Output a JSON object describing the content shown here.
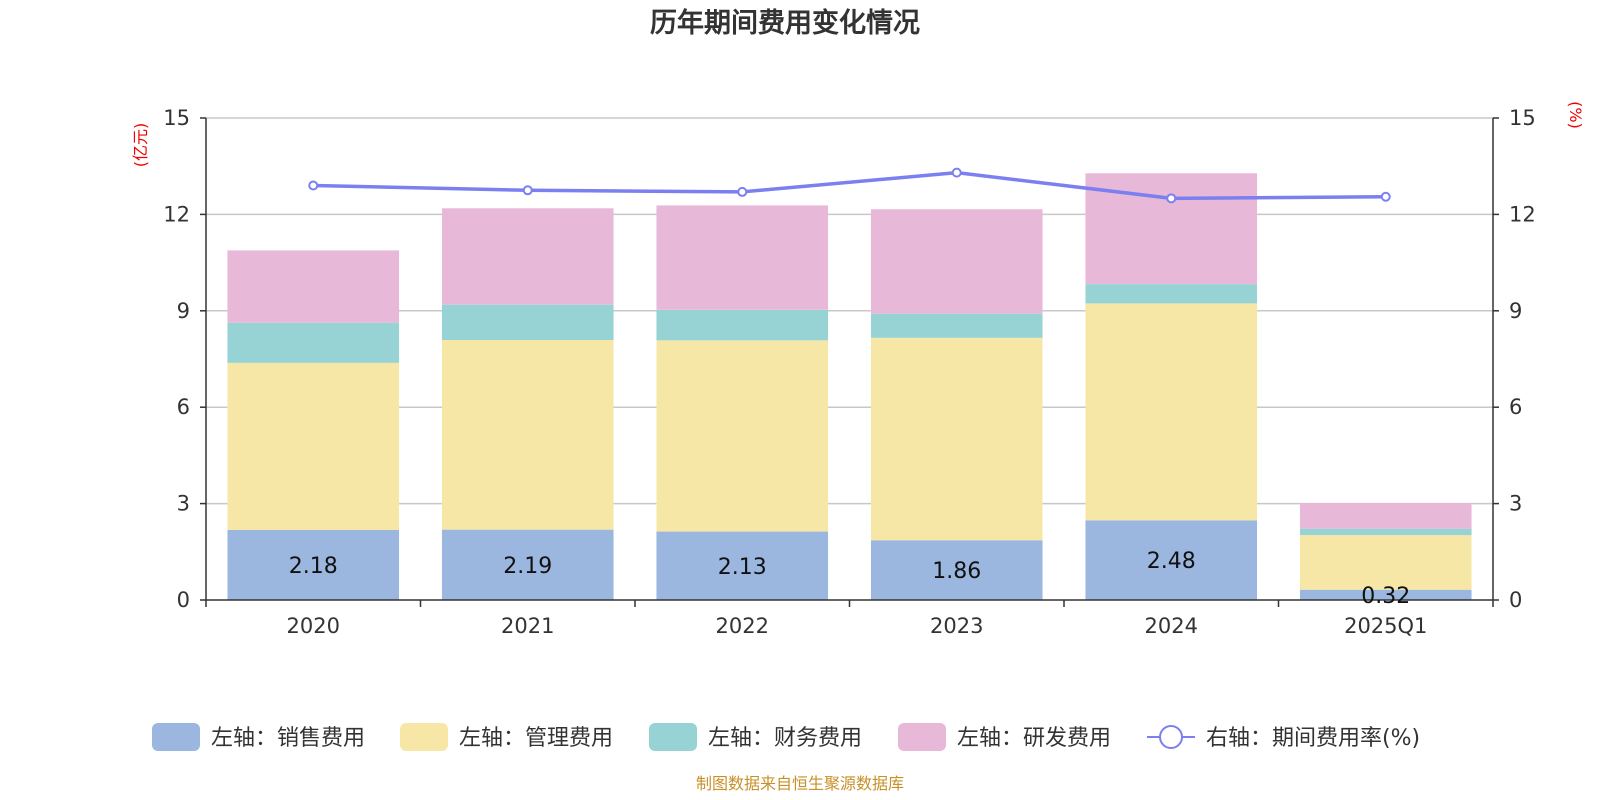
{
  "chart_data": {
    "type": "bar",
    "title": "历年期间费用变化情况",
    "categories": [
      "2020",
      "2021",
      "2022",
      "2023",
      "2024",
      "2025Q1"
    ],
    "left_axis": {
      "unit_label": "(亿元)",
      "ylim": [
        0,
        15
      ],
      "ticks": [
        "0",
        "3",
        "6",
        "9",
        "12",
        "15"
      ]
    },
    "right_axis": {
      "unit_label": "(%)",
      "ylim": [
        0,
        15
      ],
      "ticks": [
        "0",
        "3",
        "6",
        "9",
        "12",
        "15"
      ]
    },
    "grid": true,
    "legend_position": "bottom",
    "series": [
      {
        "name": "左轴：销售费用",
        "axis": "left",
        "kind": "bar",
        "color": "#9bb7e0",
        "values": [
          2.18,
          2.19,
          2.13,
          1.86,
          2.48,
          0.32
        ],
        "labels": [
          "2.18",
          "2.19",
          "2.13",
          "1.86",
          "2.48",
          "0.32"
        ]
      },
      {
        "name": "左轴：管理费用",
        "axis": "left",
        "kind": "bar",
        "color": "#f7e7a7",
        "values": [
          5.2,
          5.9,
          5.95,
          6.3,
          6.75,
          1.7
        ]
      },
      {
        "name": "左轴：财务费用",
        "axis": "left",
        "kind": "bar",
        "color": "#97d3d4",
        "values": [
          1.25,
          1.1,
          0.95,
          0.75,
          0.6,
          0.2
        ]
      },
      {
        "name": "左轴：研发费用",
        "axis": "left",
        "kind": "bar",
        "color": "#e7b8d8",
        "values": [
          2.25,
          3.0,
          3.25,
          3.25,
          3.45,
          0.8
        ]
      },
      {
        "name": "右轴：期间费用率(%)",
        "axis": "right",
        "kind": "line",
        "color": "#7b7ff0",
        "values": [
          12.9,
          12.75,
          12.7,
          13.3,
          12.5,
          12.55
        ]
      }
    ]
  },
  "footer": {
    "source": "制图数据来自恒生聚源数据库"
  }
}
